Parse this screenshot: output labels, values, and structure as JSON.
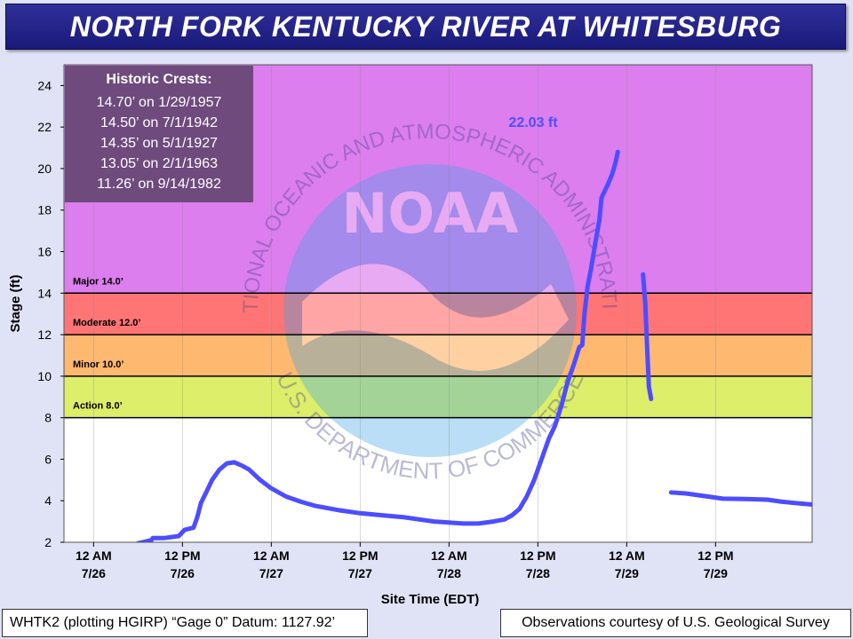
{
  "title": "NORTH FORK KENTUCKY RIVER AT WHITESBURG",
  "footer": {
    "left": "WHTK2 (plotting HGIRP) “Gage 0” Datum: 1127.92’",
    "right": "Observations courtesy of U.S. Geological Survey"
  },
  "historic_crests": {
    "heading": "Historic Crests:",
    "items": [
      "14.70’ on 1/29/1957",
      "14.50’ on 7/1/1942",
      "14.35’ on 5/1/1927",
      "13.05’ on 2/1/1963",
      "11.26’ on 9/14/1982"
    ]
  },
  "watermark": {
    "logo_text": "NOAA",
    "upper_arc": "NATIONAL OCEANIC AND ATMOSPHERIC ADMINISTRATION",
    "lower_arc": "U.S. DEPARTMENT OF COMMERCE"
  },
  "chart_data": {
    "type": "line",
    "xlabel": "Site Time (EDT)",
    "ylabel": "Stage (ft)",
    "ylim": [
      2,
      25
    ],
    "yticks": [
      2,
      4,
      6,
      8,
      10,
      12,
      14,
      16,
      18,
      20,
      22,
      24
    ],
    "xlim_hours_from_7_26_00": [
      -4,
      80
    ],
    "xticks": [
      {
        "h": 0,
        "l1": "12 AM",
        "l2": "7/26"
      },
      {
        "h": 12,
        "l1": "12 PM",
        "l2": "7/26"
      },
      {
        "h": 24,
        "l1": "12 AM",
        "l2": "7/27"
      },
      {
        "h": 36,
        "l1": "12 PM",
        "l2": "7/27"
      },
      {
        "h": 48,
        "l1": "12 AM",
        "l2": "7/28"
      },
      {
        "h": 60,
        "l1": "12 PM",
        "l2": "7/28"
      },
      {
        "h": 72,
        "l1": "12 AM",
        "l2": "7/29"
      },
      {
        "h": 84,
        "l1": "12 PM",
        "l2": "7/29"
      }
    ],
    "flood_categories": [
      {
        "name": "Action 8.0’",
        "from": 8,
        "to": 10,
        "color": "#dcee6a"
      },
      {
        "name": "Minor 10.0’",
        "from": 10,
        "to": 12,
        "color": "#ffb870"
      },
      {
        "name": "Moderate 12.0’",
        "from": 12,
        "to": 14,
        "color": "#ff7575"
      },
      {
        "name": "Major 14.0’",
        "from": 14,
        "to": 25,
        "color": "#dc7eee"
      }
    ],
    "crest_label": "22.03 ft",
    "series_color": "#4d4dff",
    "series": [
      {
        "points": [
          [
            6,
            1.95
          ],
          [
            7.8,
            2.1
          ],
          [
            8,
            2.2
          ],
          [
            9.5,
            2.2
          ],
          [
            11.5,
            2.3
          ],
          [
            12.3,
            2.6
          ],
          [
            13.5,
            2.7
          ],
          [
            14,
            3.2
          ],
          [
            14.5,
            3.9
          ],
          [
            15.2,
            4.4
          ],
          [
            16,
            5.0
          ],
          [
            17,
            5.5
          ],
          [
            18,
            5.8
          ],
          [
            19,
            5.85
          ],
          [
            20,
            5.7
          ],
          [
            21,
            5.5
          ],
          [
            22.5,
            5.0
          ],
          [
            24,
            4.6
          ],
          [
            26,
            4.2
          ],
          [
            28,
            3.95
          ],
          [
            30,
            3.75
          ],
          [
            33,
            3.55
          ],
          [
            36,
            3.4
          ],
          [
            39,
            3.3
          ],
          [
            42,
            3.2
          ],
          [
            44,
            3.1
          ],
          [
            46,
            3.0
          ],
          [
            48,
            2.95
          ],
          [
            50,
            2.9
          ],
          [
            52,
            2.9
          ],
          [
            54,
            3.0
          ],
          [
            55.5,
            3.1
          ],
          [
            56.5,
            3.3
          ],
          [
            57.5,
            3.6
          ],
          [
            58.5,
            4.2
          ],
          [
            59.5,
            5.0
          ],
          [
            60.5,
            6.0
          ],
          [
            61.5,
            7.0
          ],
          [
            62.3,
            7.6
          ],
          [
            63.2,
            8.6
          ],
          [
            64,
            9.7
          ],
          [
            64.8,
            10.5
          ],
          [
            65.6,
            11.4
          ],
          [
            66,
            11.5
          ],
          [
            66.3,
            13.0
          ],
          [
            66.7,
            14.3
          ],
          [
            67.2,
            15.2
          ],
          [
            67.8,
            16.5
          ],
          [
            68.3,
            17.5
          ],
          [
            68.6,
            18.6
          ],
          [
            69.4,
            19.2
          ],
          [
            70,
            19.7
          ],
          [
            70.5,
            20.3
          ],
          [
            70.8,
            20.8
          ]
        ]
      },
      {
        "points": [
          [
            74.2,
            14.9
          ],
          [
            74.5,
            13.5
          ],
          [
            74.8,
            11.0
          ],
          [
            75.0,
            9.5
          ],
          [
            75.3,
            8.9
          ]
        ]
      },
      {
        "points": [
          [
            78,
            4.4
          ],
          [
            80,
            4.35
          ],
          [
            82,
            4.25
          ],
          [
            85,
            4.1
          ],
          [
            88,
            4.08
          ],
          [
            91,
            4.05
          ],
          [
            93,
            3.95
          ],
          [
            96,
            3.85
          ],
          [
            99,
            3.75
          ],
          [
            102,
            3.65
          ],
          [
            105,
            3.55
          ],
          [
            108,
            3.47
          ],
          [
            110,
            3.4
          ]
        ]
      }
    ]
  }
}
